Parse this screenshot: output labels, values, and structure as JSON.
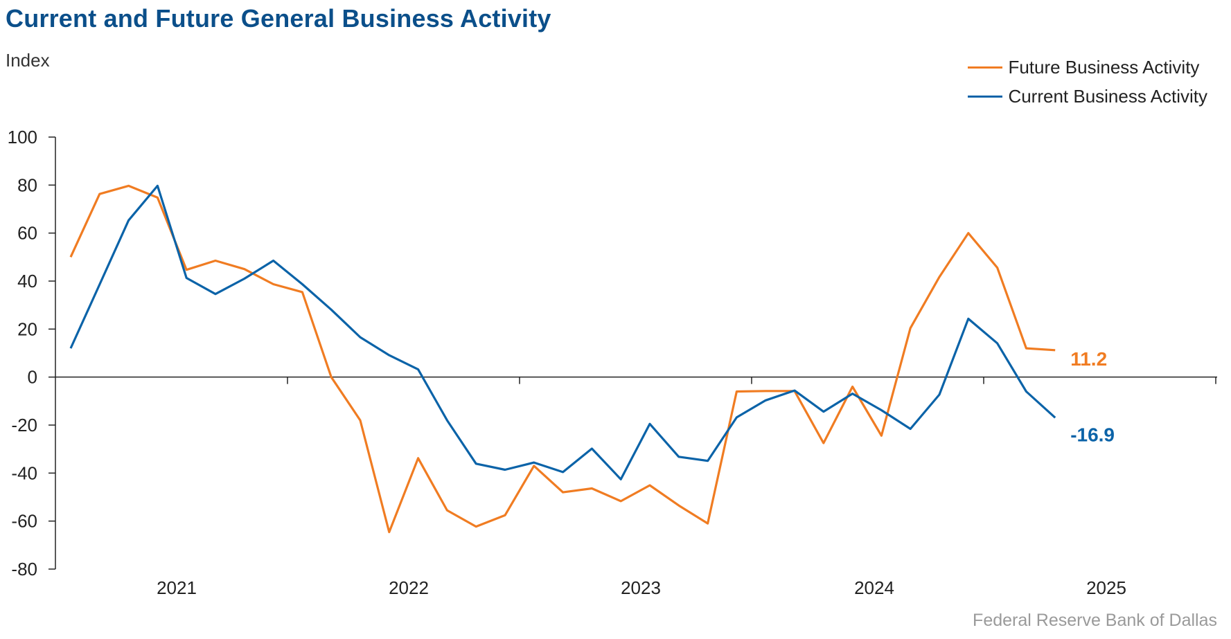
{
  "title": "Current and Future General Business Activity",
  "units": "Index",
  "source": "Federal Reserve Bank of Dallas",
  "colors": {
    "future": "#f07c22",
    "current": "#0b63a8",
    "title": "#0b4f8a",
    "axis": "#222222"
  },
  "legend": [
    {
      "key": "future",
      "label": "Future Business Activity"
    },
    {
      "key": "current",
      "label": "Current Business Activity"
    }
  ],
  "chart_data": {
    "type": "line",
    "ylim": [
      -80,
      100
    ],
    "yticks": [
      100,
      80,
      60,
      40,
      20,
      0,
      -20,
      -40,
      -60,
      -80
    ],
    "xlim": [
      0,
      49.8
    ],
    "xtick_labels": [
      "2021",
      "2022",
      "2023",
      "2024",
      "2025"
    ],
    "grid": false,
    "legend_position": "top-right",
    "series": [
      {
        "key": "future",
        "name": "Future Business Activity",
        "end_label": "11.2",
        "values": [
          50.0,
          76.3,
          79.7,
          74.8,
          44.7,
          48.5,
          45.0,
          38.7,
          35.4,
          0.0,
          -18.0,
          -64.6,
          -33.8,
          -55.5,
          -62.3,
          -57.6,
          -37.0,
          -48.0,
          -46.4,
          -51.7,
          -45.1,
          -53.5,
          -61.0,
          -6.0,
          -5.8,
          -5.8,
          -27.5,
          -4.0,
          -24.4,
          20.4,
          41.7,
          60.0,
          45.6,
          12.0,
          11.2
        ]
      },
      {
        "key": "current",
        "name": "Current Business Activity",
        "end_label": "-16.9",
        "values": [
          12.0,
          38.6,
          65.3,
          79.7,
          41.3,
          34.6,
          41.0,
          48.5,
          38.7,
          28.1,
          16.6,
          9.1,
          3.2,
          -18.0,
          -36.1,
          -38.6,
          -35.6,
          -39.6,
          -29.8,
          -42.6,
          -19.5,
          -33.2,
          -34.9,
          -16.8,
          -9.7,
          -5.6,
          -14.4,
          -6.9,
          -13.8,
          -21.6,
          -7.3,
          24.3,
          14.1,
          -6.0,
          -16.9
        ]
      }
    ]
  }
}
